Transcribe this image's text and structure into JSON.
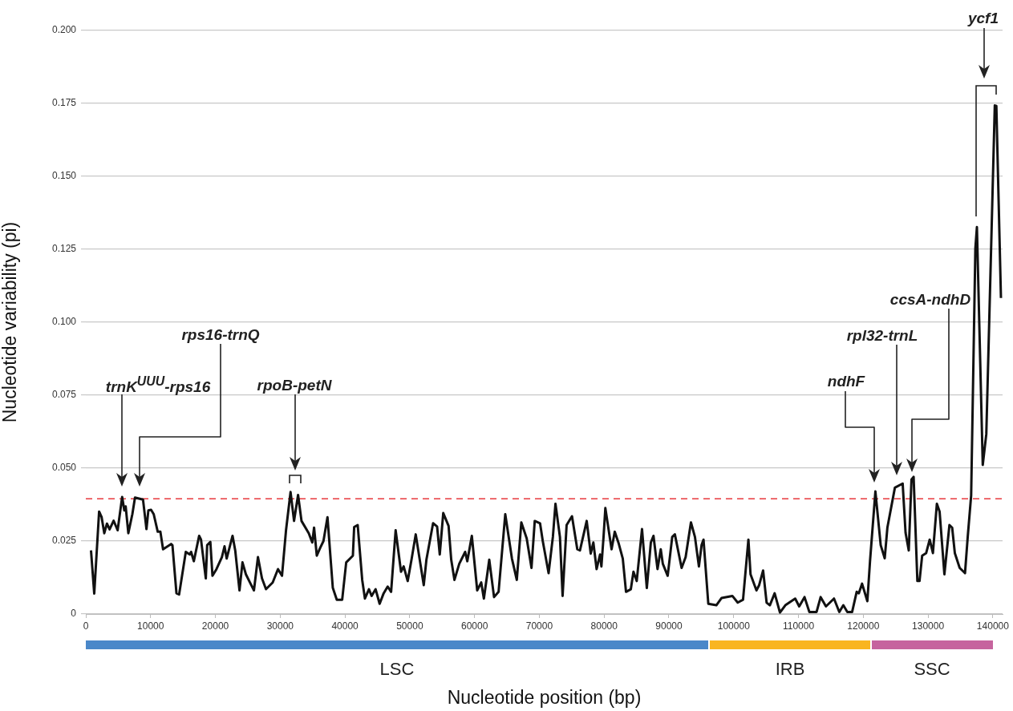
{
  "chart_data": {
    "type": "line",
    "xlabel": "Nucleotide position (bp)",
    "ylabel": "Nucleotide variability (pi)",
    "color": "#111111",
    "line_style": "solid",
    "x": [
      800,
      1300,
      2050,
      2440,
      2850,
      3260,
      3670,
      4290,
      4910,
      5610,
      5940,
      6150,
      6560,
      7180,
      7590,
      8830,
      9360,
      9650,
      10070,
      10480,
      11100,
      11510,
      11920,
      13160,
      13370,
      13990,
      14400,
      15430,
      16050,
      16250,
      16670,
      17490,
      17780,
      18520,
      18730,
      19220,
      19550,
      20170,
      21000,
      21410,
      21740,
      22650,
      23060,
      23720,
      24180,
      24710,
      25330,
      25950,
      26570,
      27190,
      27810,
      28840,
      29660,
      30280,
      30900,
      31600,
      32140,
      32760,
      33290,
      34410,
      34950,
      35230,
      35650,
      36180,
      36680,
      37300,
      38120,
      38740,
      39570,
      40190,
      41220,
      41420,
      41960,
      42660,
      43080,
      43700,
      44110,
      44730,
      45350,
      45970,
      46590,
      47120,
      47820,
      48650,
      49060,
      49680,
      50300,
      50920,
      52160,
      52570,
      53600,
      54220,
      54630,
      55170,
      55990,
      56400,
      56900,
      57640,
      58550,
      58880,
      59580,
      60410,
      61030,
      61440,
      62270,
      63010,
      63710,
      64740,
      65770,
      66520,
      67220,
      68050,
      68790,
      69290,
      70110,
      70530,
      71430,
      72090,
      72490,
      73180,
      73590,
      74210,
      75040,
      75860,
      76270,
      77310,
      77930,
      78340,
      78840,
      79370,
      79580,
      79910,
      80190,
      81150,
      81640,
      82260,
      82880,
      83380,
      84120,
      84530,
      85030,
      85850,
      86590,
      87210,
      87620,
      88240,
      88740,
      89060,
      89810,
      90510,
      90920,
      91960,
      92580,
      93400,
      94020,
      94630,
      95040,
      95340,
      96080,
      97320,
      98140,
      99790,
      100620,
      101440,
      102270,
      102600,
      103510,
      103930,
      104540,
      105080,
      105580,
      106320,
      107140,
      107970,
      109490,
      110110,
      110930,
      111680,
      112790,
      113420,
      114240,
      115480,
      116300,
      116920,
      117540,
      118280,
      118980,
      119310,
      119810,
      120630,
      121040,
      121870,
      122690,
      123310,
      123720,
      124880,
      126080,
      126530,
      127020,
      127440,
      127770,
      128350,
      128680,
      129090,
      129710,
      130250,
      130750,
      131360,
      131780,
      132520,
      133300,
      133720,
      134130,
      134880,
      135700,
      136120,
      136650,
      137300,
      137540,
      138440,
      138990,
      140300,
      140540,
      141250
    ],
    "values": [
      0.0218,
      0.007,
      0.0351,
      0.0332,
      0.0277,
      0.031,
      0.029,
      0.032,
      0.0287,
      0.0401,
      0.0355,
      0.0369,
      0.0277,
      0.0342,
      0.0399,
      0.0392,
      0.0291,
      0.0355,
      0.0357,
      0.0342,
      0.0282,
      0.0282,
      0.0222,
      0.024,
      0.0236,
      0.0071,
      0.0067,
      0.0213,
      0.0204,
      0.0213,
      0.0181,
      0.0268,
      0.0255,
      0.0122,
      0.0236,
      0.0247,
      0.0131,
      0.0154,
      0.0195,
      0.0232,
      0.019,
      0.0268,
      0.0218,
      0.0081,
      0.0177,
      0.0136,
      0.0108,
      0.0081,
      0.0195,
      0.0122,
      0.0085,
      0.0108,
      0.0154,
      0.0131,
      0.0287,
      0.0418,
      0.0319,
      0.0408,
      0.0319,
      0.0277,
      0.0245,
      0.0296,
      0.02,
      0.0227,
      0.025,
      0.0332,
      0.009,
      0.0049,
      0.0049,
      0.0177,
      0.02,
      0.0298,
      0.0305,
      0.0117,
      0.0053,
      0.0085,
      0.0062,
      0.0085,
      0.0035,
      0.0071,
      0.0094,
      0.0076,
      0.0287,
      0.0145,
      0.0163,
      0.0113,
      0.019,
      0.0273,
      0.0099,
      0.0186,
      0.0311,
      0.03,
      0.0204,
      0.0346,
      0.0302,
      0.0186,
      0.0117,
      0.0172,
      0.0213,
      0.0181,
      0.0268,
      0.0081,
      0.0108,
      0.0053,
      0.0186,
      0.0058,
      0.0076,
      0.0342,
      0.019,
      0.0117,
      0.0314,
      0.0259,
      0.0158,
      0.0319,
      0.0311,
      0.025,
      0.014,
      0.0264,
      0.0378,
      0.0264,
      0.0062,
      0.0305,
      0.0335,
      0.0222,
      0.0218,
      0.0319,
      0.0207,
      0.0245,
      0.0154,
      0.0204,
      0.0163,
      0.0264,
      0.0363,
      0.0222,
      0.0282,
      0.0241,
      0.019,
      0.0076,
      0.0085,
      0.0145,
      0.0113,
      0.0291,
      0.0089,
      0.0245,
      0.0268,
      0.0154,
      0.0222,
      0.0172,
      0.0131,
      0.0264,
      0.0273,
      0.0158,
      0.0195,
      0.0314,
      0.0264,
      0.0163,
      0.0236,
      0.0255,
      0.0035,
      0.003,
      0.0055,
      0.0062,
      0.0039,
      0.0049,
      0.0255,
      0.0136,
      0.0081,
      0.0099,
      0.0149,
      0.0039,
      0.003,
      0.0071,
      0.0005,
      0.003,
      0.0053,
      0.0026,
      0.0058,
      0.0007,
      0.0007,
      0.0058,
      0.0026,
      0.0053,
      0.0007,
      0.003,
      0.0007,
      0.0007,
      0.0076,
      0.0071,
      0.0104,
      0.0044,
      0.0181,
      0.042,
      0.0236,
      0.0191,
      0.0296,
      0.0433,
      0.0447,
      0.0278,
      0.0218,
      0.0461,
      0.047,
      0.0113,
      0.0113,
      0.02,
      0.0209,
      0.0255,
      0.0209,
      0.0378,
      0.0351,
      0.0136,
      0.0305,
      0.0296,
      0.0209,
      0.0158,
      0.014,
      0.0264,
      0.0406,
      0.1253,
      0.1326,
      0.0511,
      0.0617,
      0.1743,
      0.1741,
      0.1083
    ],
    "xlim": [
      0,
      141500
    ],
    "xticks": [
      0,
      10000,
      20000,
      30000,
      40000,
      50000,
      60000,
      70000,
      80000,
      90000,
      100000,
      110000,
      120000,
      130000,
      140000
    ],
    "ylim": [
      0,
      0.2
    ],
    "yticks": [
      0,
      0.025,
      {
        "value": 0.05,
        "label": "0.050"
      },
      0.075,
      {
        "value": 0.1,
        "label": "0.100"
      },
      0.125,
      {
        "value": 0.15,
        "label": "0.150"
      },
      0.175,
      {
        "value": 0.2,
        "label": "0.200"
      }
    ],
    "grid": "y",
    "ref_lines": [
      {
        "axis": "y",
        "value": 0.0395,
        "color": "#e8383d",
        "line_style": "dashed"
      }
    ],
    "annotations": [
      "trnK$^{UUU}$-rps16",
      "rps16-trnQ",
      "rpoB-petN",
      "ndhF",
      "rpl32-trnL",
      "ccsA-ndhD",
      "ycf1",
      "LSC",
      "IRB",
      "SSC"
    ]
  }
}
